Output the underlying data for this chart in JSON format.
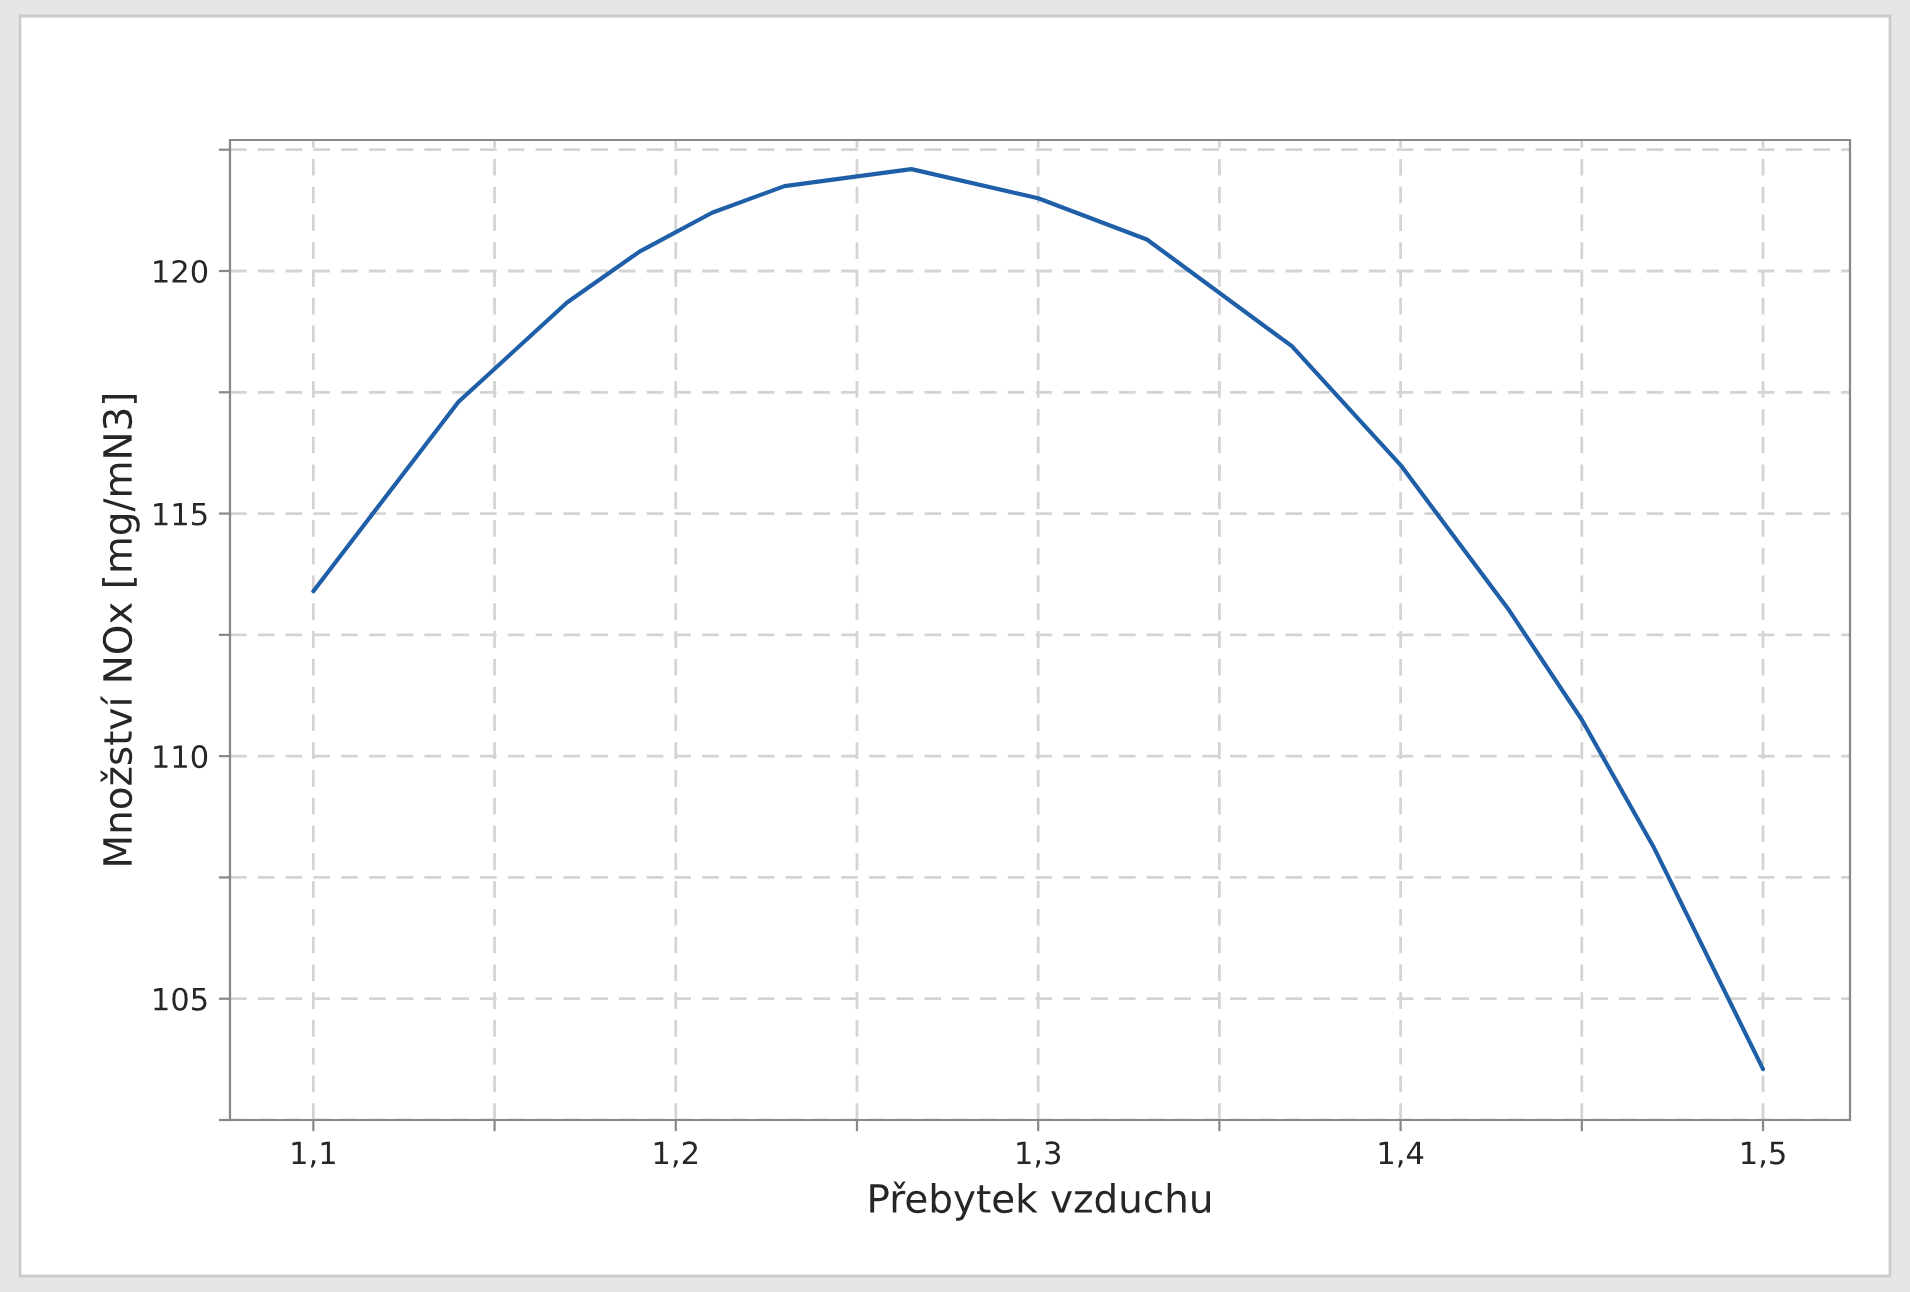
{
  "chart_data": {
    "type": "line",
    "xlabel": "Přebytek vzduchu",
    "ylabel": "Množství NOx [mg/mN3]",
    "x": [
      1.1,
      1.14,
      1.17,
      1.19,
      1.21,
      1.23,
      1.265,
      1.3,
      1.33,
      1.37,
      1.4,
      1.43,
      1.45,
      1.47,
      1.5
    ],
    "series": [
      {
        "color": "#1f5fa8",
        "values": [
          113.4,
          117.3,
          119.35,
          120.4,
          121.2,
          121.75,
          122.1,
          121.5,
          120.65,
          118.45,
          116.0,
          113.0,
          110.75,
          108.1,
          103.55
        ]
      }
    ],
    "xlim": [
      1.077,
      1.524
    ],
    "xticks": [
      {
        "value": 1.1,
        "label": "1,1"
      },
      {
        "value": 1.15,
        "label": null
      },
      {
        "value": 1.2,
        "label": "1,2"
      },
      {
        "value": 1.25,
        "label": null
      },
      {
        "value": 1.3,
        "label": "1,3"
      },
      {
        "value": 1.35,
        "label": null
      },
      {
        "value": 1.4,
        "label": "1,4"
      },
      {
        "value": 1.45,
        "label": null
      },
      {
        "value": 1.5,
        "label": "1,5"
      }
    ],
    "ylim": [
      102.5,
      122.7
    ],
    "yticks": [
      {
        "value": 102.5,
        "label": null
      },
      105,
      {
        "value": 107.5,
        "label": null
      },
      110,
      {
        "value": 112.5,
        "label": null
      },
      115,
      {
        "value": 117.5,
        "label": null
      },
      120,
      {
        "value": 122.5,
        "label": null
      }
    ],
    "grid": true,
    "marker": "none",
    "line_style": "solid"
  }
}
